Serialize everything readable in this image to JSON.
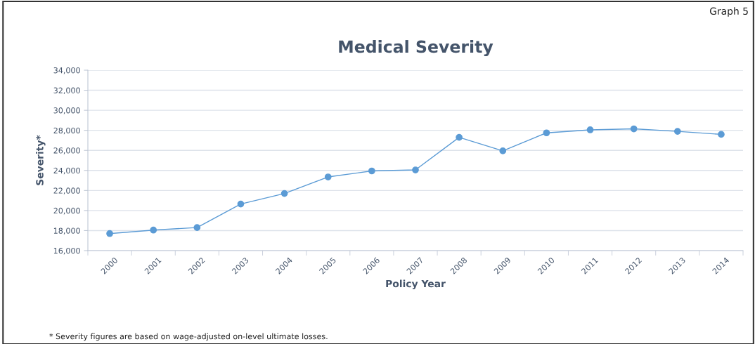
{
  "chart_data": {
    "type": "line",
    "title": "Medical Severity",
    "xlabel": "Policy Year",
    "ylabel": "Severity*",
    "categories": [
      "2000",
      "2001",
      "2002",
      "2003",
      "2004",
      "2005",
      "2006",
      "2007",
      "2008",
      "2009",
      "2010",
      "2011",
      "2012",
      "2013",
      "2014"
    ],
    "series": [
      {
        "color": "#5b9bd5",
        "values": [
          17700,
          18050,
          18300,
          20650,
          21700,
          23350,
          23950,
          24050,
          27300,
          25950,
          27750,
          28050,
          28150,
          27900,
          27600
        ]
      }
    ],
    "ylim": [
      16000,
      34000
    ],
    "yticks": [
      {
        "value": 16000,
        "label": "16,000"
      },
      {
        "value": 18000,
        "label": "18,000"
      },
      {
        "value": 20000,
        "label": "20,000"
      },
      {
        "value": 22000,
        "label": "22,000"
      },
      {
        "value": 24000,
        "label": "24,000"
      },
      {
        "value": 26000,
        "label": "26,000"
      },
      {
        "value": 28000,
        "label": "28,000"
      },
      {
        "value": 30000,
        "label": "30,000"
      },
      {
        "value": 32000,
        "label": "32,000"
      },
      {
        "value": 34000,
        "label": "34,000"
      }
    ],
    "grid": "y",
    "marker": "circle",
    "line_style": "solid",
    "legend": false,
    "annotations": [
      "Graph 5",
      "* Severity figures are based on wage-adjusted on-level ultimate losses."
    ]
  }
}
